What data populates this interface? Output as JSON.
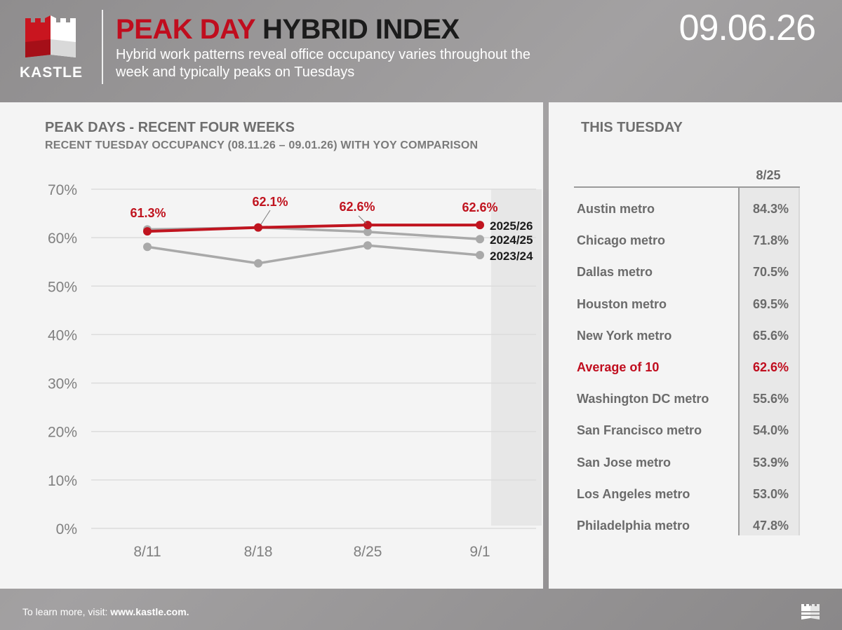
{
  "header": {
    "logo_text": "KASTLE",
    "title_red": "PEAK DAY",
    "title_dark": "HYBRID INDEX",
    "subtitle": "Hybrid work patterns reveal office occupancy varies throughout the week and typically peaks on Tuesdays",
    "date": "09.06.26"
  },
  "chart_panel": {
    "title": "PEAK DAYS - RECENT FOUR WEEKS",
    "subtitle": "RECENT TUESDAY OCCUPANCY (08.11.26 – 09.01.26) WITH YOY COMPARISON"
  },
  "chart_data": {
    "type": "line",
    "categories": [
      "8/11",
      "8/18",
      "8/25",
      "9/1"
    ],
    "y_ticks": [
      "0%",
      "10%",
      "20%",
      "30%",
      "40%",
      "50%",
      "60%",
      "70%"
    ],
    "ylim": [
      0,
      70
    ],
    "grid": true,
    "series": [
      {
        "name": "2025/26",
        "values": [
          61.3,
          62.1,
          62.6,
          62.6
        ],
        "color": "#c0141f",
        "labels": [
          "61.3%",
          "62.1%",
          "62.6%",
          "62.6%"
        ]
      },
      {
        "name": "2024/25",
        "values": [
          61.7,
          62.1,
          61.2,
          59.7
        ],
        "color": "#a9a9a9"
      },
      {
        "name": "2023/24",
        "values": [
          58.1,
          54.7,
          58.4,
          56.4
        ],
        "color": "#a9a9a9"
      }
    ]
  },
  "table_panel": {
    "title": "THIS TUESDAY",
    "column_header": "8/25",
    "rows": [
      {
        "metro": "Austin metro",
        "value": "84.3%"
      },
      {
        "metro": "Chicago metro",
        "value": "71.8%"
      },
      {
        "metro": "Dallas metro",
        "value": "70.5%"
      },
      {
        "metro": "Houston metro",
        "value": "69.5%"
      },
      {
        "metro": "New York metro",
        "value": "65.6%"
      },
      {
        "metro": "Average of 10",
        "value": "62.6%",
        "highlight": true
      },
      {
        "metro": "Washington DC metro",
        "value": "55.6%"
      },
      {
        "metro": "San Francisco metro",
        "value": "54.0%"
      },
      {
        "metro": "San Jose metro",
        "value": "53.9%"
      },
      {
        "metro": "Los Angeles metro",
        "value": "53.0%"
      },
      {
        "metro": "Philadelphia metro",
        "value": "47.8%"
      }
    ]
  },
  "footer": {
    "text": "To learn more, visit:",
    "link": "www.kastle.com."
  },
  "colors": {
    "brand_red": "#c00d1e",
    "panel_bg": "#f4f4f4",
    "gray_line": "#a9a9a9"
  }
}
